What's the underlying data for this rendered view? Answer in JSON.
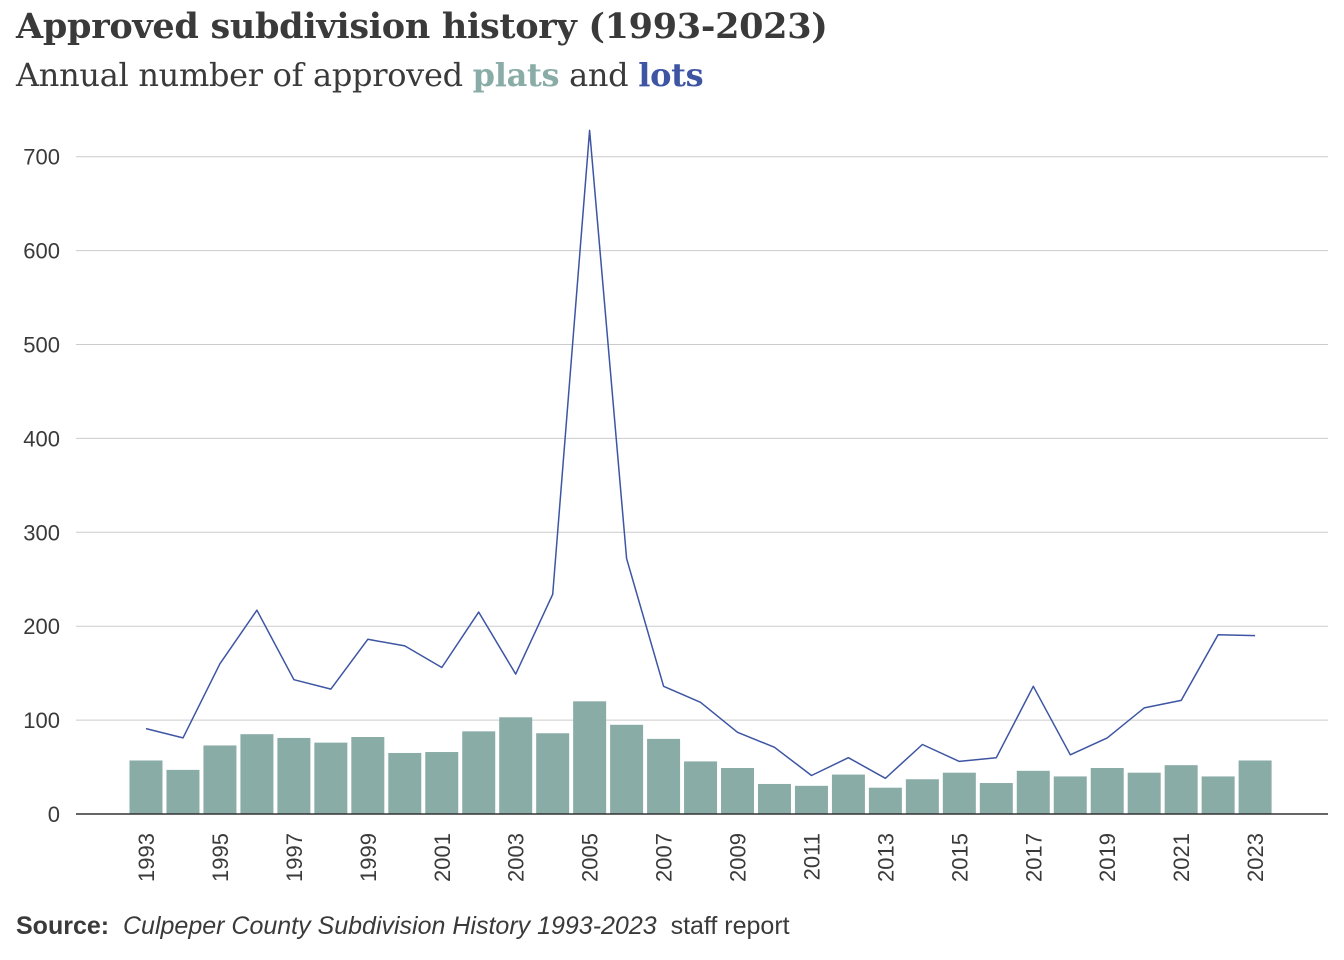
{
  "header": {
    "title": "Approved subdivision history (1993-2023)",
    "subtitle_pre": "Annual number of approved ",
    "subtitle_plats": "plats",
    "subtitle_mid": " and ",
    "subtitle_lots": "lots"
  },
  "source": {
    "label": "Source:",
    "publication": "Culpeper County Subdivision History 1993-2023",
    "suffix": "staff report"
  },
  "colors": {
    "plats": "#8aaca7",
    "lots": "#3d55a3",
    "grid": "#cccccc",
    "axis": "#333333",
    "text": "#3a3a3a"
  },
  "chart_data": {
    "type": "bar+line",
    "title": "Approved subdivision history (1993-2023)",
    "subtitle": "Annual number of approved plats and lots",
    "xlabel": "",
    "ylabel": "",
    "ylim": [
      0,
      730
    ],
    "yticks": [
      0,
      100,
      200,
      300,
      400,
      500,
      600,
      700
    ],
    "grid": true,
    "legend": "in subtitle",
    "x": [
      1993,
      1994,
      1995,
      1996,
      1997,
      1998,
      1999,
      2000,
      2001,
      2002,
      2003,
      2004,
      2005,
      2006,
      2007,
      2008,
      2009,
      2010,
      2011,
      2012,
      2013,
      2014,
      2015,
      2016,
      2017,
      2018,
      2019,
      2020,
      2021,
      2022,
      2023
    ],
    "x_tick_labels": [
      "1993",
      "1995",
      "1997",
      "1999",
      "2001",
      "2003",
      "2005",
      "2007",
      "2009",
      "2011",
      "2013",
      "2015",
      "2017",
      "2019",
      "2021",
      "2023"
    ],
    "series": [
      {
        "name": "plats",
        "type": "bar",
        "values": [
          57,
          47,
          73,
          85,
          81,
          76,
          82,
          65,
          66,
          88,
          103,
          86,
          120,
          95,
          80,
          56,
          49,
          32,
          30,
          42,
          28,
          37,
          44,
          33,
          46,
          40,
          49,
          44,
          52,
          40,
          57
        ]
      },
      {
        "name": "lots",
        "type": "line",
        "values": [
          91,
          81,
          160,
          217,
          143,
          133,
          186,
          179,
          156,
          215,
          149,
          234,
          728,
          272,
          136,
          119,
          87,
          71,
          41,
          60,
          38,
          74,
          56,
          60,
          136,
          63,
          81,
          113,
          121,
          191,
          190
        ]
      }
    ]
  }
}
